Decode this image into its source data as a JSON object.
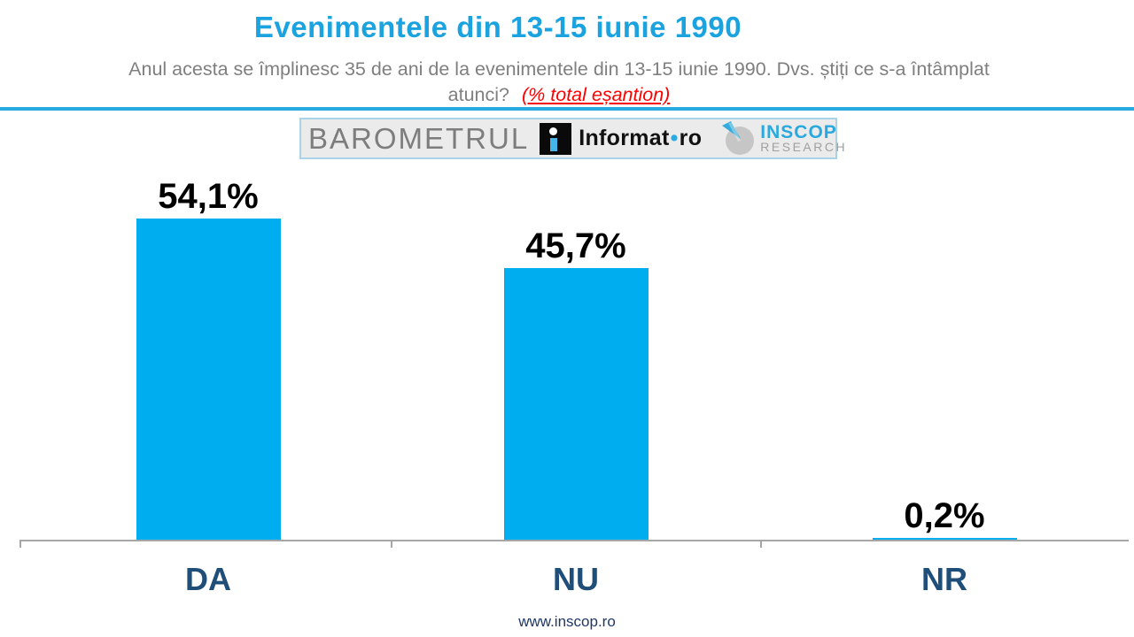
{
  "header": {
    "title": "Evenimentele din 13-15 iunie 1990",
    "subtitle_line1": "Anul acesta se împlinesc 35 de ani de la evenimentele din 13-15 iunie 1990. Dvs. știți ce s-a întâmplat",
    "subtitle_line2": "atunci?",
    "subtitle_note": "(% total eșantion)"
  },
  "logo_banner": {
    "barometrul": "BAROMETRUL",
    "informat_name": "Informat",
    "informat_separator": "•",
    "informat_tld": "ro",
    "inscop_line1": "INSCOP",
    "inscop_line2": "RESEARCH"
  },
  "icons": {
    "informat_i": "black-square-letter-i",
    "inscop_clock": "gray-circle-with-cyan-needle"
  },
  "chart_data": {
    "type": "bar",
    "title": "Evenimentele din 13-15 iunie 1990",
    "categories": [
      "DA",
      "NU",
      "NR"
    ],
    "values": [
      54.1,
      45.7,
      0.2
    ],
    "value_labels": [
      "54,1%",
      "45,7%",
      "0,2%"
    ],
    "xlabel": "",
    "ylabel": "",
    "ylim": [
      0,
      60
    ],
    "grid": false,
    "legend": false,
    "bar_color": "#00AEEF",
    "category_label_color": "#1F4E79",
    "value_label_color": "#000000"
  },
  "colors": {
    "title": "#1BA3E0",
    "subtitle": "#7F7F7F",
    "note_red": "#FF0000",
    "divider": "#29ABE2",
    "axis": "#A6A6A6",
    "footer": "#1F3864",
    "inscop_cyan": "#2AA9DE"
  },
  "footer": {
    "website": "www.inscop.ro"
  }
}
